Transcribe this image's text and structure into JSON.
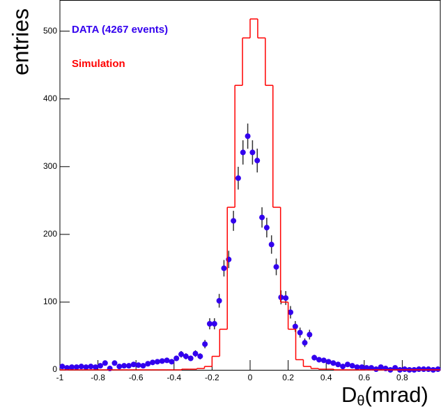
{
  "chart_data": {
    "type": "histogram",
    "ylabel": "entries",
    "xlabel": [
      "D",
      "θ",
      "(mrad)"
    ],
    "xlim": [
      -1,
      1
    ],
    "ylim": [
      0,
      546
    ],
    "xticks": [
      -1,
      -0.8,
      -0.6,
      -0.4,
      -0.2,
      0,
      0.2,
      0.4,
      0.6,
      0.8
    ],
    "yticks": [
      0,
      100,
      200,
      300,
      400,
      500
    ],
    "series": [
      {
        "name": "DATA (4267 events)",
        "type": "scatter",
        "color": "#3300ee",
        "x": [
          -0.9875,
          -0.9625,
          -0.9375,
          -0.9125,
          -0.8875,
          -0.8625,
          -0.8375,
          -0.8125,
          -0.7875,
          -0.7625,
          -0.7375,
          -0.7125,
          -0.6875,
          -0.6625,
          -0.6375,
          -0.6125,
          -0.5875,
          -0.5625,
          -0.5375,
          -0.5125,
          -0.4875,
          -0.4625,
          -0.4375,
          -0.4125,
          -0.3875,
          -0.3625,
          -0.3375,
          -0.3125,
          -0.2875,
          -0.2625,
          -0.2375,
          -0.2125,
          -0.1875,
          -0.1625,
          -0.1375,
          -0.1125,
          -0.0875,
          -0.0625,
          -0.0375,
          -0.0125,
          0.0125,
          0.0375,
          0.0625,
          0.0875,
          0.1125,
          0.1375,
          0.1625,
          0.1875,
          0.2125,
          0.2375,
          0.2625,
          0.2875,
          0.3125,
          0.3375,
          0.3625,
          0.3875,
          0.4125,
          0.4375,
          0.4625,
          0.4875,
          0.5125,
          0.5375,
          0.5625,
          0.5875,
          0.6125,
          0.6375,
          0.6625,
          0.6875,
          0.7125,
          0.7375,
          0.7625,
          0.7875,
          0.8125,
          0.8375,
          0.8625,
          0.8875,
          0.9125,
          0.9375,
          0.9625,
          0.9875
        ],
        "values": [
          5,
          3,
          4,
          4,
          5,
          4,
          5,
          4,
          6,
          10,
          2,
          10,
          5,
          6,
          6,
          8,
          7,
          6,
          9,
          11,
          12,
          13,
          14,
          12,
          17,
          23,
          20,
          17,
          24,
          20,
          38,
          68,
          68,
          102,
          150,
          163,
          220,
          283,
          321,
          345,
          321,
          309,
          225,
          210,
          185,
          152,
          107,
          106,
          85,
          64,
          55,
          40,
          52,
          18,
          15,
          14,
          12,
          10,
          8,
          5,
          8,
          6,
          4,
          4,
          3,
          3,
          1,
          4,
          2,
          0,
          3,
          0,
          1,
          0,
          0,
          1,
          1,
          1,
          0,
          1
        ],
        "errors": [
          2.2,
          1.7,
          2,
          2,
          2.2,
          2,
          2.2,
          2,
          2.4,
          3.2,
          1.4,
          3.2,
          2.2,
          2.4,
          2.4,
          2.8,
          2.6,
          2.4,
          3,
          3.3,
          3.5,
          3.6,
          3.7,
          3.5,
          4.1,
          4.8,
          4.5,
          4.1,
          4.9,
          4.5,
          6.2,
          8.2,
          8.2,
          10.1,
          12.2,
          12.8,
          14.8,
          16.8,
          17.9,
          18.6,
          17.9,
          17.6,
          15,
          14.5,
          13.6,
          12.3,
          10.3,
          10.3,
          9.2,
          8,
          7.4,
          6.3,
          7.2,
          4.2,
          3.9,
          3.7,
          3.5,
          3.2,
          2.8,
          2.2,
          2.8,
          2.4,
          2,
          2,
          1.7,
          1.7,
          1,
          2,
          1.4,
          0,
          1.7,
          0,
          1,
          0,
          0,
          1,
          1,
          1,
          0,
          1
        ]
      },
      {
        "name": "Simulation",
        "type": "step",
        "color": "#ff0000",
        "bins": [
          -1,
          -0.96,
          -0.92,
          -0.88,
          -0.84,
          -0.8,
          -0.76,
          -0.72,
          -0.68,
          -0.64,
          -0.6,
          -0.56,
          -0.52,
          -0.48,
          -0.44,
          -0.4,
          -0.36,
          -0.32,
          -0.28,
          -0.24,
          -0.2,
          -0.16,
          -0.12,
          -0.08,
          -0.04,
          0,
          0.04,
          0.08,
          0.12,
          0.16,
          0.2,
          0.24,
          0.28,
          0.32,
          0.36,
          0.4,
          0.44,
          0.48,
          0.52,
          0.56,
          0.6,
          0.64,
          0.68,
          0.72,
          0.76,
          0.8,
          0.84,
          0.88,
          0.92,
          0.96,
          1
        ],
        "values": [
          0,
          0,
          0,
          0,
          0,
          0,
          0,
          0,
          0,
          0,
          0,
          0,
          0,
          0,
          0,
          0,
          1,
          1,
          2,
          5,
          20,
          60,
          240,
          420,
          490,
          518,
          490,
          420,
          240,
          100,
          60,
          15,
          5,
          2,
          1,
          1,
          0,
          0,
          0,
          0,
          0,
          0,
          0,
          0,
          0,
          0,
          0,
          0,
          0,
          0
        ]
      }
    ]
  }
}
